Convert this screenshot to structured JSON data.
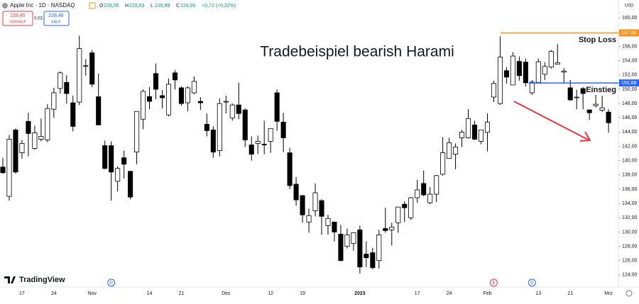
{
  "header": {
    "symbol": "Apple Inc · 1D · NASDAQ",
    "quote": [
      {
        "key": "O",
        "value": "228,06"
      },
      {
        "key": "H",
        "value": "229,93"
      },
      {
        "key": "L",
        "value": "225,89"
      },
      {
        "key": "C",
        "value": "229,00"
      }
    ],
    "change": "+0,72 (+0,32%)"
  },
  "trade_panel": {
    "sell_price": "228,45",
    "sell_label": "VERKAUF",
    "spread": "0,03",
    "buy_price": "228,48",
    "buy_label": "KAUF"
  },
  "brand": "TradingView",
  "chart_data": {
    "type": "candlestick",
    "title": "Tradebeispiel bearish Harami",
    "currency": "USD",
    "categories": [
      null,
      null,
      null,
      "17",
      null,
      null,
      null,
      null,
      "24",
      null,
      null,
      null,
      null,
      null,
      "Nov",
      null,
      null,
      null,
      null,
      null,
      null,
      null,
      null,
      "14",
      null,
      null,
      null,
      null,
      "21",
      null,
      null,
      null,
      null,
      null,
      null,
      "Dez",
      null,
      null,
      null,
      null,
      null,
      null,
      "12",
      null,
      null,
      null,
      null,
      "19",
      null,
      null,
      null,
      null,
      null,
      null,
      null,
      null,
      "2023",
      null,
      null,
      null,
      null,
      null,
      null,
      null,
      null,
      "17",
      null,
      null,
      null,
      null,
      "24",
      null,
      null,
      null,
      null,
      null,
      "Feb",
      null,
      null,
      null,
      null,
      null,
      null,
      null,
      "13",
      null,
      null,
      null,
      null,
      "21",
      null,
      null,
      null,
      null,
      null,
      "Mrz"
    ],
    "open": [
      139.1,
      134.99,
      144.3,
      141.1,
      145.5,
      141.7,
      143.0,
      142.9,
      147.2,
      150.1,
      150.96,
      148.1,
      148.2,
      153.2,
      155.1,
      148.95,
      142.1,
      142.1,
      137.1,
      140.4,
      138.5,
      141.2,
      145.8,
      148.97,
      152.2,
      149.1,
      146.4,
      152.3,
      150.2,
      148.1,
      149.5,
      148.3,
      145.1,
      144.3,
      141.4,
      148.2,
      145.96,
      147.8,
      147.1,
      142.2,
      142.4,
      142.3,
      142.7,
      149.5,
      145.4,
      141.1,
      136.7,
      135.1,
      131.4,
      132.98,
      134.4,
      130.9,
      131.4,
      129.7,
      127.99,
      128.4,
      130.3,
      126.9,
      127.1,
      126.0,
      130.5,
      130.3,
      131.3,
      133.9,
      132.0,
      134.8,
      136.8,
      134.1,
      135.3,
      138.1,
      140.3,
      140.9,
      143.2,
      143.2,
      145.0,
      142.7,
      143.97,
      148.9,
      148.0,
      152.6,
      150.6,
      153.9,
      153.8,
      149.5,
      150.95,
      152.1,
      153.1,
      153.5,
      152.4,
      150.2,
      148.9,
      150.1,
      147.1,
      147.7,
      147.05,
      146.8
    ],
    "high": [
      140.4,
      143.6,
      144.5,
      142.9,
      146.7,
      144.9,
      145.9,
      147.9,
      150.2,
      152.5,
      151.99,
      149.1,
      157.5,
      154.2,
      155.5,
      152.2,
      142.8,
      142.7,
      139.2,
      141.4,
      138.6,
      146.9,
      150.0,
      150.3,
      153.6,
      149.9,
      151.5,
      152.7,
      150.4,
      150.4,
      151.8,
      148.9,
      146.6,
      144.8,
      148.7,
      149.1,
      148.0,
      150.9,
      147.3,
      143.4,
      143.5,
      145.6,
      144.5,
      149.97,
      146.7,
      141.8,
      137.7,
      135.2,
      133.3,
      136.8,
      134.6,
      132.4,
      131.4,
      131.0,
      130.5,
      129.95,
      130.9,
      128.7,
      127.8,
      130.3,
      133.4,
      131.3,
      133.5,
      134.3,
      134.9,
      137.3,
      138.6,
      136.3,
      138.0,
      143.3,
      143.2,
      142.4,
      144.3,
      147.2,
      145.6,
      144.3,
      146.6,
      151.2,
      157.4,
      153.1,
      155.2,
      154.6,
      154.3,
      151.3,
      154.3,
      153.8,
      155.5,
      156.3,
      153.0,
      151.3,
      149.95,
      150.3,
      147.2,
      149.2,
      149.1,
      147.2
    ],
    "low": [
      138.2,
      134.4,
      138.2,
      140.3,
      140.6,
      141.5,
      142.7,
      142.6,
      146.0,
      149.4,
      148.0,
      144.1,
      147.8,
      151.9,
      150.3,
      145.0,
      138.8,
      134.4,
      135.7,
      137.5,
      134.6,
      139.5,
      144.4,
      147.2,
      148.6,
      147.3,
      146.2,
      149.97,
      147.7,
      146.9,
      149.3,
      147.1,
      143.4,
      140.4,
      140.6,
      146.6,
      145.6,
      145.8,
      141.9,
      140.0,
      140.9,
      140.9,
      141.1,
      144.2,
      141.2,
      136.0,
      133.7,
      131.3,
      129.9,
      132.2,
      129.6,
      129.6,
      128.7,
      125.9,
      127.7,
      127.4,
      124.2,
      125.1,
      124.8,
      124.9,
      129.9,
      128.1,
      129.9,
      131.4,
      131.7,
      134.1,
      135.0,
      133.9,
      134.2,
      137.9,
      140.3,
      138.8,
      141.9,
      143.1,
      142.9,
      142.3,
      141.3,
      148.2,
      147.8,
      150.8,
      150.6,
      151.2,
      150.4,
      149.2,
      150.9,
      151.3,
      152.9,
      153.5,
      150.85,
      148.4,
      147.2,
      147.2,
      145.7,
      147.45,
      146.8,
      143.9
    ],
    "close": [
      138.3,
      143.0,
      138.4,
      142.4,
      143.8,
      143.9,
      143.4,
      147.3,
      149.5,
      152.3,
      149.4,
      144.8,
      155.7,
      153.3,
      150.7,
      145.0,
      138.9,
      138.4,
      138.9,
      139.5,
      134.9,
      146.9,
      149.7,
      148.3,
      150.0,
      148.8,
      150.7,
      151.3,
      148.0,
      150.2,
      151.1,
      148.1,
      144.2,
      141.2,
      148.0,
      148.3,
      147.8,
      146.6,
      142.9,
      140.9,
      142.7,
      142.2,
      144.5,
      145.5,
      143.2,
      136.5,
      134.5,
      132.4,
      132.3,
      135.5,
      132.2,
      131.9,
      130.0,
      126.0,
      129.6,
      129.9,
      125.1,
      126.4,
      125.0,
      129.6,
      130.2,
      130.7,
      133.5,
      133.4,
      134.8,
      135.9,
      135.2,
      135.3,
      137.9,
      141.1,
      142.5,
      141.9,
      144.0,
      145.9,
      143.0,
      144.3,
      145.4,
      150.8,
      154.5,
      151.7,
      154.65,
      151.9,
      150.9,
      151.0,
      153.85,
      153.2,
      155.3,
      153.7,
      152.55,
      148.5,
      148.9,
      149.4,
      146.7,
      147.9,
      147.4,
      145.3
    ],
    "up_color": "#ffffff",
    "down_color": "#000000",
    "ylim": [
      122.3,
      162.5
    ],
    "yticks": [
      {
        "value": 124,
        "label": "124,00"
      },
      {
        "value": 126,
        "label": "126,00"
      },
      {
        "value": 128,
        "label": "128,00"
      },
      {
        "value": 130,
        "label": "130,00"
      },
      {
        "value": 132,
        "label": "132,00"
      },
      {
        "value": 134,
        "label": "134,00"
      },
      {
        "value": 136,
        "label": "136,00"
      },
      {
        "value": 138,
        "label": "138,00"
      },
      {
        "value": 140,
        "label": "140,00"
      },
      {
        "value": 142,
        "label": "142,00"
      },
      {
        "value": 144,
        "label": "144,00"
      },
      {
        "value": 146,
        "label": "146,00"
      },
      {
        "value": 148,
        "label": "148,00"
      },
      {
        "value": 150,
        "label": "150,00"
      },
      {
        "value": 152,
        "label": "152,00"
      },
      {
        "value": 154,
        "label": "154,00"
      },
      {
        "value": 156,
        "label": "156,00"
      },
      {
        "value": 158,
        "label": "158,00"
      },
      {
        "value": 160,
        "label": "160,00"
      }
    ],
    "grid": false,
    "price_lines": [
      {
        "value": 157.89,
        "label": "157,89",
        "text": "Stop Loss",
        "color": "#f7931a"
      },
      {
        "value": 150.88,
        "label": "150,88",
        "text": "Einstieg",
        "color": "#2962ff"
      }
    ],
    "events": [
      {
        "label": "D",
        "at": 17,
        "color": "#2962ff"
      },
      {
        "label": "E",
        "at": 77,
        "color": "#f23645"
      },
      {
        "label": "D",
        "at": 83,
        "color": "#2962ff"
      }
    ]
  }
}
